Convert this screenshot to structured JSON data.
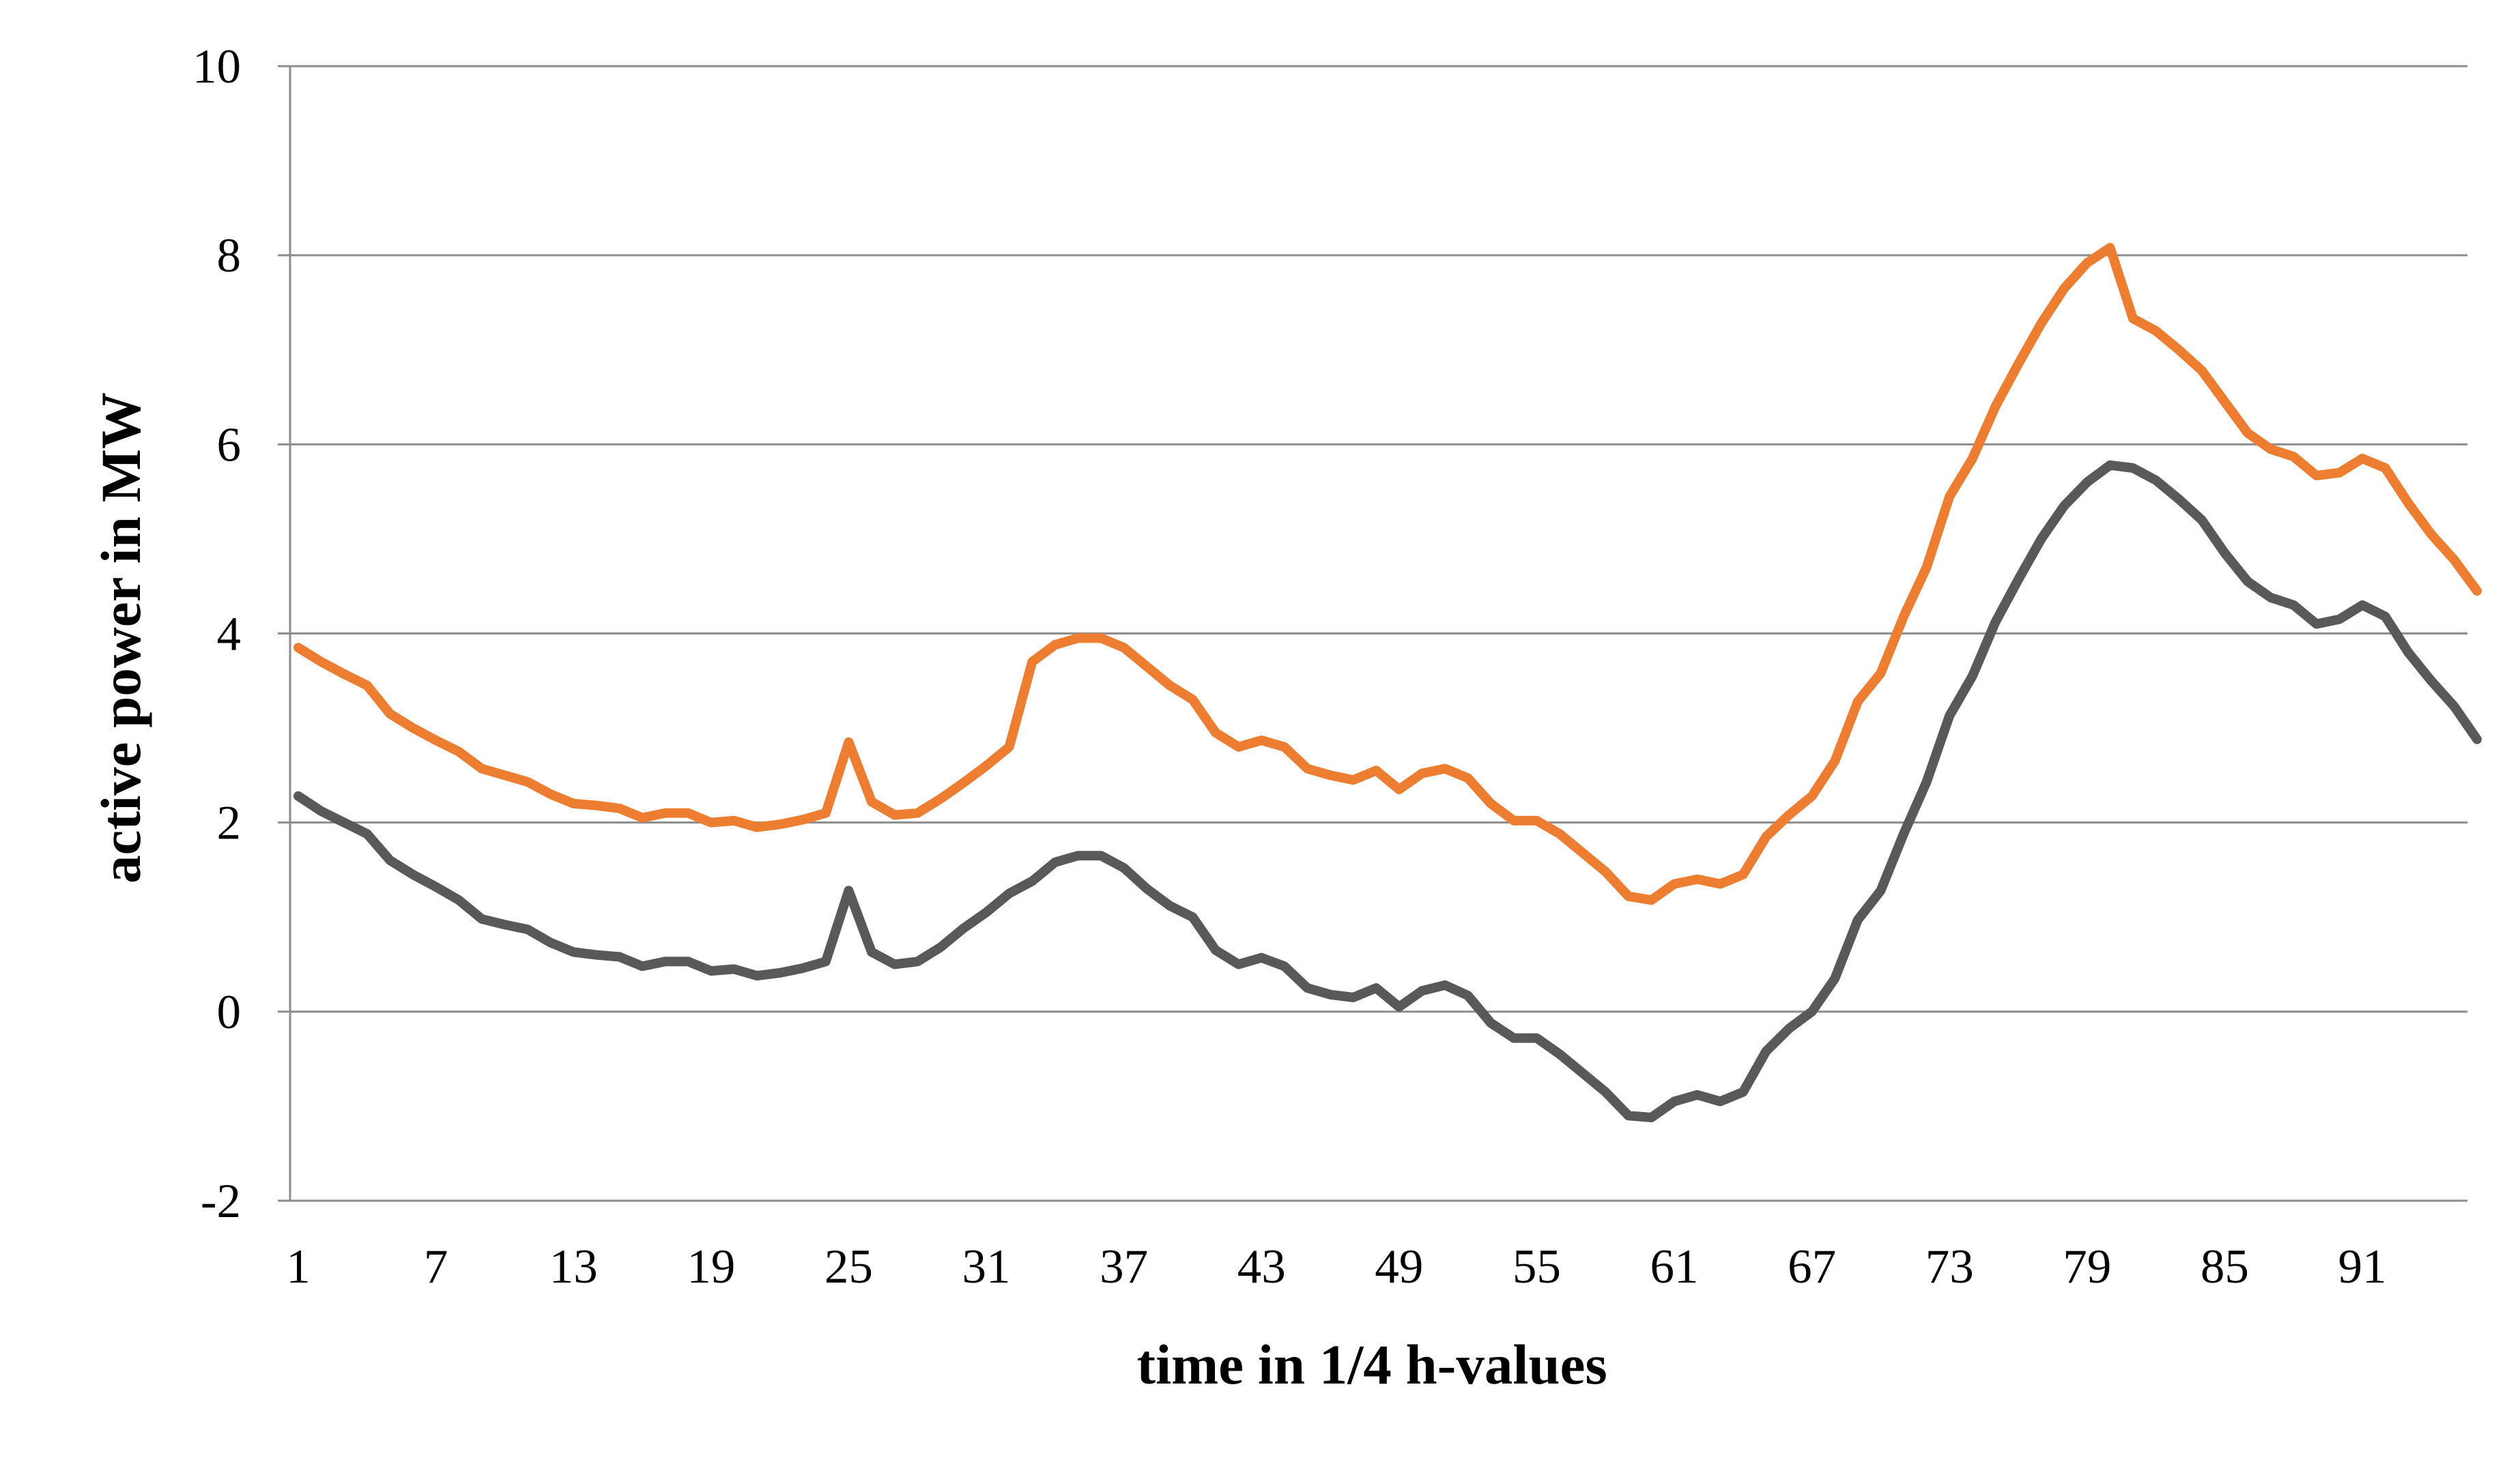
{
  "chart_data": {
    "type": "line",
    "title": "",
    "xlabel": "time in 1/4 h-values",
    "ylabel": "active power in MW",
    "ylim": [
      -2,
      10
    ],
    "yticks": [
      "-2",
      "0",
      "2",
      "4",
      "6",
      "8",
      "10"
    ],
    "yticks_values": [
      -2,
      0,
      2,
      4,
      6,
      8,
      10
    ],
    "xlim": [
      1,
      96
    ],
    "xticks": [
      "1",
      "7",
      "13",
      "19",
      "25",
      "31",
      "37",
      "43",
      "49",
      "55",
      "61",
      "67",
      "73",
      "79",
      "85",
      "91"
    ],
    "xticks_values": [
      1,
      7,
      13,
      19,
      25,
      31,
      37,
      43,
      49,
      55,
      61,
      67,
      73,
      79,
      85,
      91
    ],
    "grid": true,
    "legend": "none",
    "series": [
      {
        "color": "#ed7d31",
        "x": [
          1,
          2,
          3,
          4,
          5,
          6,
          7,
          8,
          9,
          10,
          11,
          12,
          13,
          14,
          15,
          16,
          17,
          18,
          19,
          20,
          21,
          22,
          23,
          24,
          25,
          26,
          27,
          28,
          29,
          30,
          31,
          32,
          33,
          34,
          35,
          36,
          37,
          38,
          39,
          40,
          41,
          42,
          43,
          44,
          45,
          46,
          47,
          48,
          49,
          50,
          51,
          52,
          53,
          54,
          55,
          56,
          57,
          58,
          59,
          60,
          61,
          62,
          63,
          64,
          65,
          66,
          67,
          68,
          69,
          70,
          71,
          72,
          73,
          74,
          75,
          76,
          77,
          78,
          79,
          80,
          81,
          82,
          83,
          84,
          85,
          86,
          87,
          88,
          89,
          90,
          91,
          92,
          93,
          94,
          95,
          96
        ],
        "values": [
          3.85,
          3.7,
          3.57,
          3.45,
          3.15,
          3.0,
          2.87,
          2.75,
          2.57,
          2.5,
          2.43,
          2.3,
          2.2,
          2.18,
          2.15,
          2.05,
          2.1,
          2.1,
          2.0,
          2.02,
          1.95,
          1.98,
          2.03,
          2.1,
          2.85,
          2.22,
          2.08,
          2.1,
          2.25,
          2.42,
          2.6,
          2.8,
          3.7,
          3.88,
          3.95,
          3.95,
          3.85,
          3.65,
          3.45,
          3.3,
          2.95,
          2.8,
          2.87,
          2.8,
          2.57,
          2.5,
          2.45,
          2.55,
          2.35,
          2.52,
          2.57,
          2.47,
          2.2,
          2.02,
          2.02,
          1.88,
          1.68,
          1.48,
          1.22,
          1.18,
          1.35,
          1.4,
          1.35,
          1.45,
          1.85,
          2.08,
          2.28,
          2.65,
          3.28,
          3.58,
          4.18,
          4.7,
          5.45,
          5.85,
          6.4,
          6.85,
          7.28,
          7.65,
          7.92,
          8.08,
          7.33,
          7.2,
          7.0,
          6.78,
          6.45,
          6.12,
          5.95,
          5.87,
          5.67,
          5.7,
          5.85,
          5.75,
          5.38,
          5.05,
          4.78,
          4.45
        ]
      },
      {
        "color": "#595959",
        "x": [
          1,
          2,
          3,
          4,
          5,
          6,
          7,
          8,
          9,
          10,
          11,
          12,
          13,
          14,
          15,
          16,
          17,
          18,
          19,
          20,
          21,
          22,
          23,
          24,
          25,
          26,
          27,
          28,
          29,
          30,
          31,
          32,
          33,
          34,
          35,
          36,
          37,
          38,
          39,
          40,
          41,
          42,
          43,
          44,
          45,
          46,
          47,
          48,
          49,
          50,
          51,
          52,
          53,
          54,
          55,
          56,
          57,
          58,
          59,
          60,
          61,
          62,
          63,
          64,
          65,
          66,
          67,
          68,
          69,
          70,
          71,
          72,
          73,
          74,
          75,
          76,
          77,
          78,
          79,
          80,
          81,
          82,
          83,
          84,
          85,
          86,
          87,
          88,
          89,
          90,
          91,
          92,
          93,
          94,
          95,
          96
        ],
        "values": [
          2.28,
          2.12,
          2.0,
          1.88,
          1.6,
          1.45,
          1.32,
          1.18,
          0.98,
          0.92,
          0.87,
          0.73,
          0.63,
          0.6,
          0.58,
          0.48,
          0.53,
          0.53,
          0.43,
          0.45,
          0.38,
          0.41,
          0.46,
          0.53,
          1.28,
          0.63,
          0.5,
          0.53,
          0.68,
          0.88,
          1.05,
          1.25,
          1.38,
          1.58,
          1.65,
          1.65,
          1.52,
          1.3,
          1.12,
          1.0,
          0.65,
          0.5,
          0.57,
          0.48,
          0.25,
          0.18,
          0.15,
          0.25,
          0.05,
          0.22,
          0.28,
          0.17,
          -0.12,
          -0.28,
          -0.28,
          -0.45,
          -0.65,
          -0.85,
          -1.1,
          -1.12,
          -0.95,
          -0.88,
          -0.95,
          -0.85,
          -0.42,
          -0.18,
          0.0,
          0.35,
          0.97,
          1.28,
          1.88,
          2.43,
          3.13,
          3.55,
          4.12,
          4.57,
          5.0,
          5.35,
          5.6,
          5.78,
          5.75,
          5.62,
          5.42,
          5.2,
          4.85,
          4.55,
          4.38,
          4.3,
          4.1,
          4.15,
          4.3,
          4.18,
          3.8,
          3.5,
          3.23,
          2.88
        ]
      }
    ]
  }
}
